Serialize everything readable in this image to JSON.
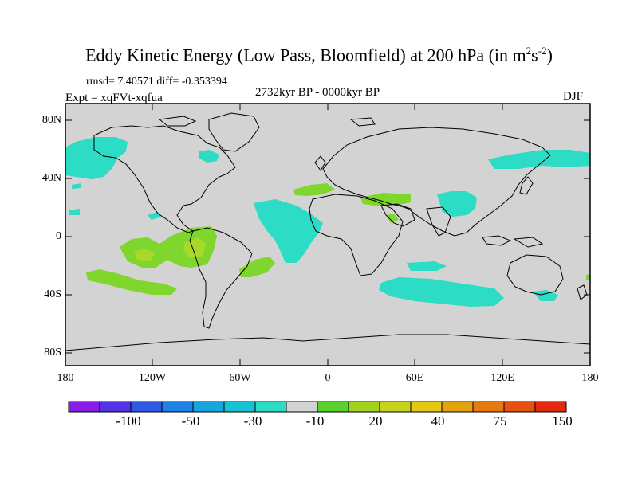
{
  "title": {
    "main": "Eddy Kinetic Energy (Low Pass, Bloomfield) at 200 hPa (in m",
    "sup1": "2",
    "mid": "s",
    "sup2": "-2",
    "end": ")"
  },
  "stats": "rmsd= 7.40571 diff= -0.353394",
  "experiment": "Expt = xqFVt-xqfua",
  "period": "2732kyr BP - 0000kyr BP",
  "season": "DJF",
  "axes": {
    "y_labels": [
      "80N",
      "40N",
      "0",
      "40S",
      "80S"
    ],
    "x_labels": [
      "180",
      "120W",
      "60W",
      "0",
      "60E",
      "120E",
      "180"
    ]
  },
  "colors": {
    "land_ocean_neutral": "#d3d3d3",
    "coast": "#000000",
    "cyan": "#2cdcc4",
    "green": "#7fd62c",
    "lime": "#a8d92a"
  },
  "colorbar": {
    "colors": [
      "#8a1ee6",
      "#5432e6",
      "#2e5ae6",
      "#1e82e6",
      "#16a6de",
      "#16c2d6",
      "#2cdcc4",
      "#d3d3d3",
      "#5ad22c",
      "#a2d21e",
      "#c8d21a",
      "#e6c812",
      "#e6a20e",
      "#e67a0e",
      "#e6520e",
      "#e62a0e"
    ],
    "labels": [
      "-100",
      "-50",
      "-30",
      "-10",
      "20",
      "40",
      "75",
      "150"
    ]
  }
}
